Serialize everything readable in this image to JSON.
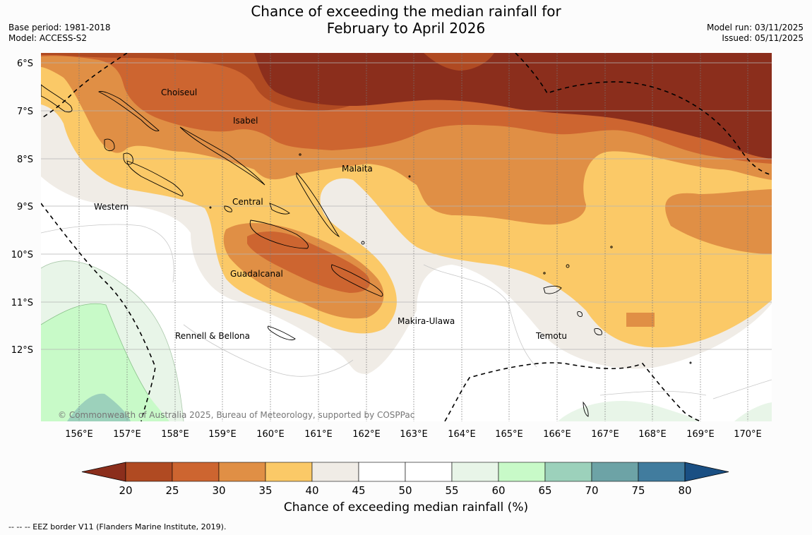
{
  "title": {
    "line1": "Chance of exceeding the median rainfall for",
    "line2": "February to April 2026"
  },
  "meta_left": {
    "base_period": "Base period: 1981-2018",
    "model": "Model: ACCESS-S2"
  },
  "meta_right": {
    "model_run": "Model run: 03/11/2025",
    "issued": "Issued: 05/11/2025"
  },
  "map": {
    "lat_labels": [
      "6°S",
      "7°S",
      "8°S",
      "9°S",
      "10°S",
      "11°S",
      "12°S"
    ],
    "lon_labels": [
      "156°E",
      "157°E",
      "158°E",
      "159°E",
      "160°E",
      "161°E",
      "162°E",
      "163°E",
      "164°E",
      "165°E",
      "166°E",
      "167°E",
      "168°E",
      "169°E",
      "170°E"
    ],
    "regions": [
      "Choiseul",
      "Isabel",
      "Malaita",
      "Western",
      "Central",
      "Guadalcanal",
      "Makira-Ulawa",
      "Rennell & Bellona",
      "Temotu"
    ],
    "copyright": "© Commonwealth of Australia 2025, Bureau of Meteorology, supported by COSPPac"
  },
  "colorbar": {
    "ticks": [
      "20",
      "25",
      "30",
      "35",
      "40",
      "45",
      "50",
      "55",
      "60",
      "65",
      "70",
      "75",
      "80"
    ],
    "colors": [
      "#8b2e1c",
      "#b04a22",
      "#cd6530",
      "#e08f45",
      "#fbc967",
      "#f0ece6",
      "#ffffff",
      "#ffffff",
      "#e8f5e8",
      "#c8fac8",
      "#9cd1bb",
      "#6da3a6",
      "#417c9e",
      "#1a4f83"
    ],
    "title": "Chance of exceeding median rainfall (%)"
  },
  "footnote": "--  --  -- EEZ border V11 (Flanders Marine Institute, 2019)."
}
